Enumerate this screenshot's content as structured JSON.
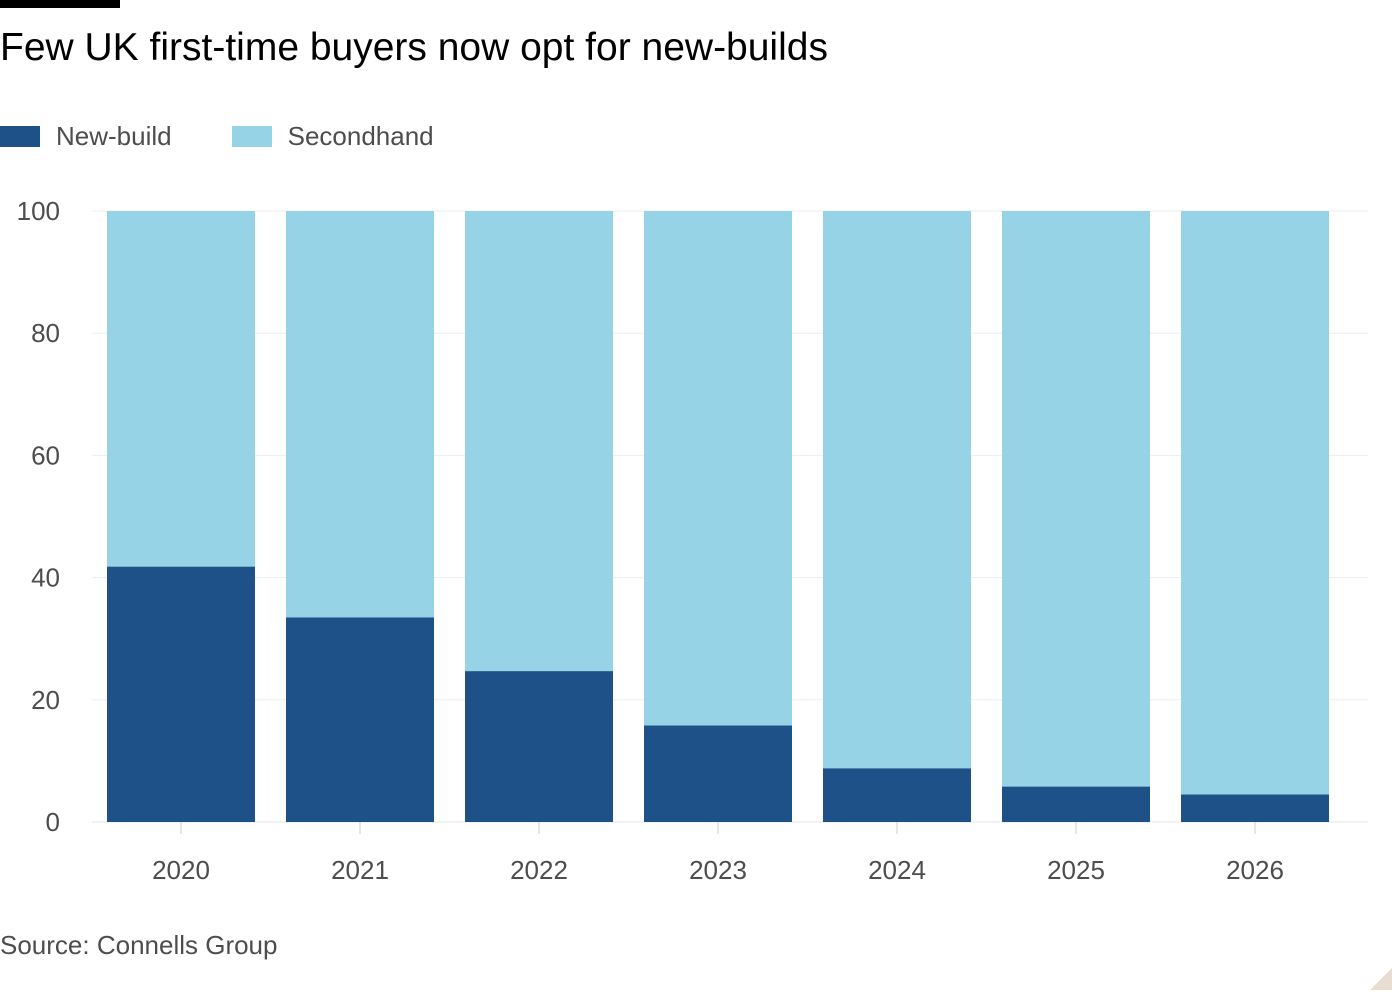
{
  "title": "Few UK first-time buyers now opt for new-builds",
  "source": "Source: Connells Group",
  "legend": [
    {
      "label": "New-build",
      "color": "#1f5189"
    },
    {
      "label": "Secondhand",
      "color": "#96d3e6"
    }
  ],
  "chart_data": {
    "type": "bar",
    "stacked": true,
    "title": "Few UK first-time buyers now opt for new-builds",
    "categories": [
      "2020",
      "2021",
      "2022",
      "2023",
      "2024",
      "2025",
      "2026"
    ],
    "series": [
      {
        "name": "New-build",
        "color": "#1f5189",
        "values": [
          41.8,
          33.5,
          24.7,
          15.8,
          8.8,
          5.8,
          4.5
        ]
      },
      {
        "name": "Secondhand",
        "color": "#96d3e6",
        "values": [
          58.2,
          66.5,
          75.3,
          84.2,
          91.2,
          94.2,
          95.5
        ]
      }
    ],
    "ylim": [
      0,
      100
    ],
    "yticks": [
      0,
      20,
      40,
      60,
      80,
      100
    ],
    "xlabel": "",
    "ylabel": "",
    "grid": true,
    "legend_position": "top-left"
  }
}
